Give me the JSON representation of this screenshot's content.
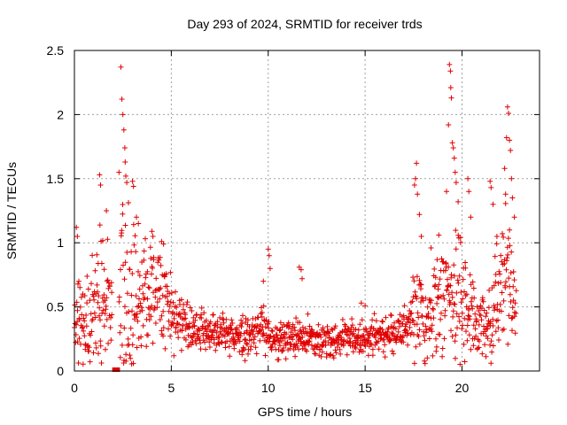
{
  "chart_data": {
    "type": "scatter",
    "title": "Day 293 of 2024, SRMTID for receiver trds",
    "xlabel": "GPS time / hours",
    "ylabel": "SRMTID / TECUs",
    "xlim": [
      0,
      24
    ],
    "ylim": [
      0,
      2.5
    ],
    "xticks": [
      "0",
      "5",
      "10",
      "15",
      "20"
    ],
    "xtick_values": [
      0,
      5,
      10,
      15,
      20
    ],
    "yticks": [
      "0",
      "0.5",
      "1",
      "1.5",
      "2",
      "2.5"
    ],
    "ytick_values": [
      0,
      0.5,
      1,
      1.5,
      2,
      2.5
    ],
    "grid": true,
    "marker": "+",
    "series_color": "#e00000",
    "gap_marker": {
      "x_start": 1.95,
      "x_end": 2.35,
      "y": 0
    },
    "envelope": [
      {
        "x": 0.0,
        "base": 0.4,
        "spread": 0.28
      },
      {
        "x": 0.5,
        "base": 0.35,
        "spread": 0.3
      },
      {
        "x": 1.0,
        "base": 0.4,
        "spread": 0.35
      },
      {
        "x": 1.5,
        "base": 0.55,
        "spread": 0.45
      },
      {
        "x": 2.0,
        "base": 0.45,
        "spread": 0.4
      },
      {
        "x": 2.5,
        "base": 0.55,
        "spread": 0.55
      },
      {
        "x": 3.0,
        "base": 0.6,
        "spread": 0.5
      },
      {
        "x": 3.5,
        "base": 0.65,
        "spread": 0.4
      },
      {
        "x": 4.0,
        "base": 0.6,
        "spread": 0.3
      },
      {
        "x": 4.5,
        "base": 0.55,
        "spread": 0.3
      },
      {
        "x": 5.0,
        "base": 0.45,
        "spread": 0.25
      },
      {
        "x": 6.0,
        "base": 0.32,
        "spread": 0.13
      },
      {
        "x": 7.0,
        "base": 0.3,
        "spread": 0.12
      },
      {
        "x": 8.0,
        "base": 0.28,
        "spread": 0.12
      },
      {
        "x": 9.0,
        "base": 0.27,
        "spread": 0.12
      },
      {
        "x": 9.8,
        "base": 0.35,
        "spread": 0.18
      },
      {
        "x": 10.5,
        "base": 0.22,
        "spread": 0.1
      },
      {
        "x": 11.5,
        "base": 0.25,
        "spread": 0.14
      },
      {
        "x": 12.5,
        "base": 0.24,
        "spread": 0.12
      },
      {
        "x": 13.5,
        "base": 0.25,
        "spread": 0.12
      },
      {
        "x": 14.5,
        "base": 0.25,
        "spread": 0.14
      },
      {
        "x": 15.5,
        "base": 0.27,
        "spread": 0.13
      },
      {
        "x": 16.5,
        "base": 0.3,
        "spread": 0.13
      },
      {
        "x": 17.2,
        "base": 0.33,
        "spread": 0.15
      },
      {
        "x": 17.7,
        "base": 0.55,
        "spread": 0.35
      },
      {
        "x": 18.2,
        "base": 0.35,
        "spread": 0.2
      },
      {
        "x": 18.8,
        "base": 0.5,
        "spread": 0.3
      },
      {
        "x": 19.3,
        "base": 0.75,
        "spread": 0.45
      },
      {
        "x": 19.8,
        "base": 0.65,
        "spread": 0.4
      },
      {
        "x": 20.3,
        "base": 0.55,
        "spread": 0.35
      },
      {
        "x": 20.8,
        "base": 0.35,
        "spread": 0.2
      },
      {
        "x": 21.3,
        "base": 0.3,
        "spread": 0.2
      },
      {
        "x": 21.8,
        "base": 0.6,
        "spread": 0.4
      },
      {
        "x": 22.3,
        "base": 0.75,
        "spread": 0.45
      },
      {
        "x": 22.8,
        "base": 0.5,
        "spread": 0.25
      }
    ],
    "x_end": 22.8,
    "n_points": 1300,
    "spikes": [
      {
        "x": 0.1,
        "y": 1.12
      },
      {
        "x": 0.15,
        "y": 1.05
      },
      {
        "x": 1.3,
        "y": 1.53
      },
      {
        "x": 1.35,
        "y": 1.45
      },
      {
        "x": 1.65,
        "y": 1.25
      },
      {
        "x": 2.3,
        "y": 1.55
      },
      {
        "x": 2.4,
        "y": 2.37
      },
      {
        "x": 2.45,
        "y": 2.12
      },
      {
        "x": 2.5,
        "y": 2.0
      },
      {
        "x": 2.55,
        "y": 1.88
      },
      {
        "x": 2.6,
        "y": 1.74
      },
      {
        "x": 2.62,
        "y": 1.63
      },
      {
        "x": 2.65,
        "y": 1.52
      },
      {
        "x": 2.7,
        "y": 1.47
      },
      {
        "x": 3.0,
        "y": 1.48
      },
      {
        "x": 3.05,
        "y": 1.44
      },
      {
        "x": 3.2,
        "y": 1.2
      },
      {
        "x": 3.3,
        "y": 1.15
      },
      {
        "x": 4.0,
        "y": 1.09
      },
      {
        "x": 4.05,
        "y": 1.05
      },
      {
        "x": 4.5,
        "y": 1.01
      },
      {
        "x": 4.6,
        "y": 0.99
      },
      {
        "x": 9.75,
        "y": 0.7
      },
      {
        "x": 10.0,
        "y": 0.95
      },
      {
        "x": 10.05,
        "y": 0.9
      },
      {
        "x": 10.1,
        "y": 0.8
      },
      {
        "x": 11.6,
        "y": 0.81
      },
      {
        "x": 11.7,
        "y": 0.79
      },
      {
        "x": 11.75,
        "y": 0.72
      },
      {
        "x": 14.8,
        "y": 0.53
      },
      {
        "x": 15.0,
        "y": 0.51
      },
      {
        "x": 17.55,
        "y": 1.45
      },
      {
        "x": 17.6,
        "y": 1.5
      },
      {
        "x": 17.65,
        "y": 1.62
      },
      {
        "x": 17.7,
        "y": 1.38
      },
      {
        "x": 17.8,
        "y": 1.22
      },
      {
        "x": 17.9,
        "y": 1.05
      },
      {
        "x": 18.4,
        "y": 0.96
      },
      {
        "x": 18.8,
        "y": 1.06
      },
      {
        "x": 19.2,
        "y": 1.4
      },
      {
        "x": 19.3,
        "y": 1.92
      },
      {
        "x": 19.35,
        "y": 2.39
      },
      {
        "x": 19.4,
        "y": 2.34
      },
      {
        "x": 19.42,
        "y": 2.21
      },
      {
        "x": 19.45,
        "y": 2.13
      },
      {
        "x": 19.5,
        "y": 1.78
      },
      {
        "x": 19.55,
        "y": 1.74
      },
      {
        "x": 19.6,
        "y": 1.66
      },
      {
        "x": 19.65,
        "y": 1.55
      },
      {
        "x": 19.7,
        "y": 1.47
      },
      {
        "x": 19.8,
        "y": 1.32
      },
      {
        "x": 20.3,
        "y": 1.5
      },
      {
        "x": 20.35,
        "y": 1.4
      },
      {
        "x": 20.45,
        "y": 1.2
      },
      {
        "x": 21.45,
        "y": 1.48
      },
      {
        "x": 21.5,
        "y": 1.43
      },
      {
        "x": 21.6,
        "y": 1.3
      },
      {
        "x": 21.8,
        "y": 1.05
      },
      {
        "x": 22.2,
        "y": 1.58
      },
      {
        "x": 22.25,
        "y": 1.38
      },
      {
        "x": 22.3,
        "y": 1.82
      },
      {
        "x": 22.35,
        "y": 2.06
      },
      {
        "x": 22.4,
        "y": 2.01
      },
      {
        "x": 22.45,
        "y": 1.8
      },
      {
        "x": 22.5,
        "y": 1.72
      },
      {
        "x": 22.55,
        "y": 1.5
      },
      {
        "x": 22.6,
        "y": 1.35
      },
      {
        "x": 22.7,
        "y": 1.2
      }
    ]
  }
}
